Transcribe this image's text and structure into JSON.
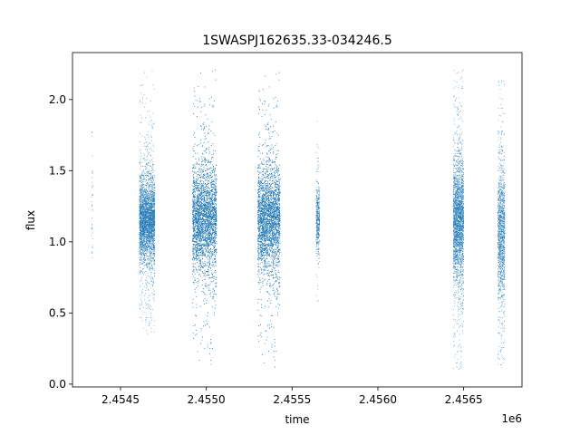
{
  "chart_data": {
    "type": "scatter",
    "title": "1SWASPJ162635.33-034246.5",
    "xlabel": "time",
    "ylabel": "flux",
    "x_offset_label": "1e6",
    "xlim": [
      2454220,
      2456840
    ],
    "ylim": [
      -0.02,
      2.33
    ],
    "x_ticks": [
      2454500,
      2455000,
      2455500,
      2456000,
      2456500
    ],
    "x_tick_labels": [
      "2.4545",
      "2.4550",
      "2.4555",
      "2.4560",
      "2.4565"
    ],
    "y_ticks": [
      0.0,
      0.5,
      1.0,
      1.5,
      2.0
    ],
    "y_tick_labels": [
      "0.0",
      "0.5",
      "1.0",
      "1.5",
      "2.0"
    ],
    "grid": false,
    "point_color": "#1f77b4",
    "clusters": [
      {
        "x_start": 2454330,
        "x_end": 2454340,
        "y_center": 1.2,
        "y_spread": 0.2,
        "y_min": 0.88,
        "y_max": 1.8,
        "points": 40
      },
      {
        "x_start": 2454610,
        "x_end": 2454700,
        "y_center": 1.15,
        "y_spread": 0.14,
        "y_min": 0.35,
        "y_max": 2.22,
        "points": 3500
      },
      {
        "x_start": 2454920,
        "x_end": 2455060,
        "y_center": 1.16,
        "y_spread": 0.17,
        "y_min": 0.12,
        "y_max": 2.22,
        "points": 7000
      },
      {
        "x_start": 2455300,
        "x_end": 2455430,
        "y_center": 1.16,
        "y_spread": 0.17,
        "y_min": 0.1,
        "y_max": 2.2,
        "points": 6500
      },
      {
        "x_start": 2455640,
        "x_end": 2455660,
        "y_center": 1.15,
        "y_spread": 0.11,
        "y_min": 0.48,
        "y_max": 1.87,
        "points": 450
      },
      {
        "x_start": 2456440,
        "x_end": 2456500,
        "y_center": 1.15,
        "y_spread": 0.2,
        "y_min": 0.1,
        "y_max": 2.22,
        "points": 2600
      },
      {
        "x_start": 2456700,
        "x_end": 2456740,
        "y_center": 1.08,
        "y_spread": 0.24,
        "y_min": 0.13,
        "y_max": 2.15,
        "points": 1400
      }
    ]
  }
}
